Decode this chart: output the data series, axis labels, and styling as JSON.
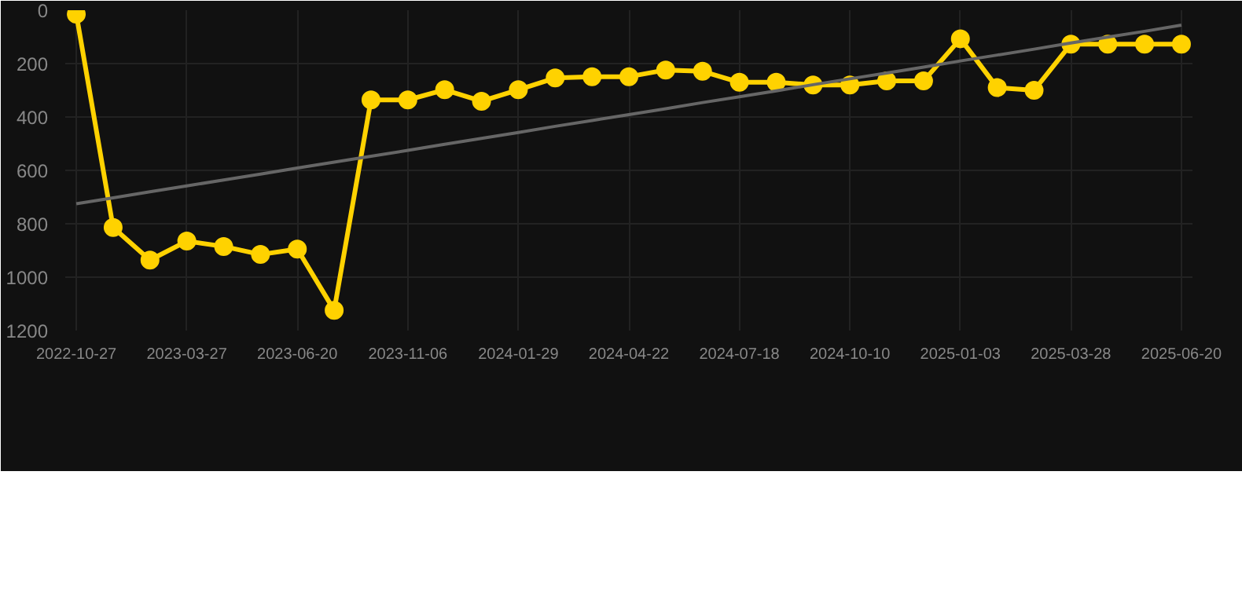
{
  "chart_data": {
    "type": "line",
    "categories": [
      "2022-10-27",
      null,
      null,
      "2023-03-27",
      null,
      null,
      "2023-06-20",
      null,
      null,
      "2023-11-06",
      null,
      null,
      "2024-01-29",
      null,
      null,
      "2024-04-22",
      null,
      null,
      "2024-07-18",
      null,
      null,
      "2024-10-10",
      null,
      null,
      "2025-01-03",
      null,
      null,
      "2025-03-28",
      null,
      null,
      "2025-06-20"
    ],
    "series": [
      {
        "color": "#ffd200",
        "marker": "circle",
        "values": [
          15,
          814,
          936,
          865,
          885,
          915,
          895,
          1124,
          336,
          336,
          298,
          341,
          298,
          254,
          249,
          249,
          224,
          229,
          270,
          270,
          280,
          280,
          265,
          265,
          107,
          290,
          300,
          127,
          127,
          127,
          127
        ]
      },
      {
        "type": "line",
        "color": "#666666",
        "marker": "none",
        "values": [
          725,
          703,
          680,
          658,
          636,
          614,
          591,
          569,
          547,
          525,
          502,
          480,
          458,
          435,
          413,
          391,
          369,
          346,
          324,
          302,
          279,
          257,
          235,
          213,
          190,
          168,
          146,
          123,
          101,
          79,
          56
        ]
      }
    ],
    "ylim": [
      1200,
      0
    ],
    "yticks": [
      0,
      200,
      400,
      600,
      800,
      1000,
      1200
    ],
    "grid": true
  }
}
